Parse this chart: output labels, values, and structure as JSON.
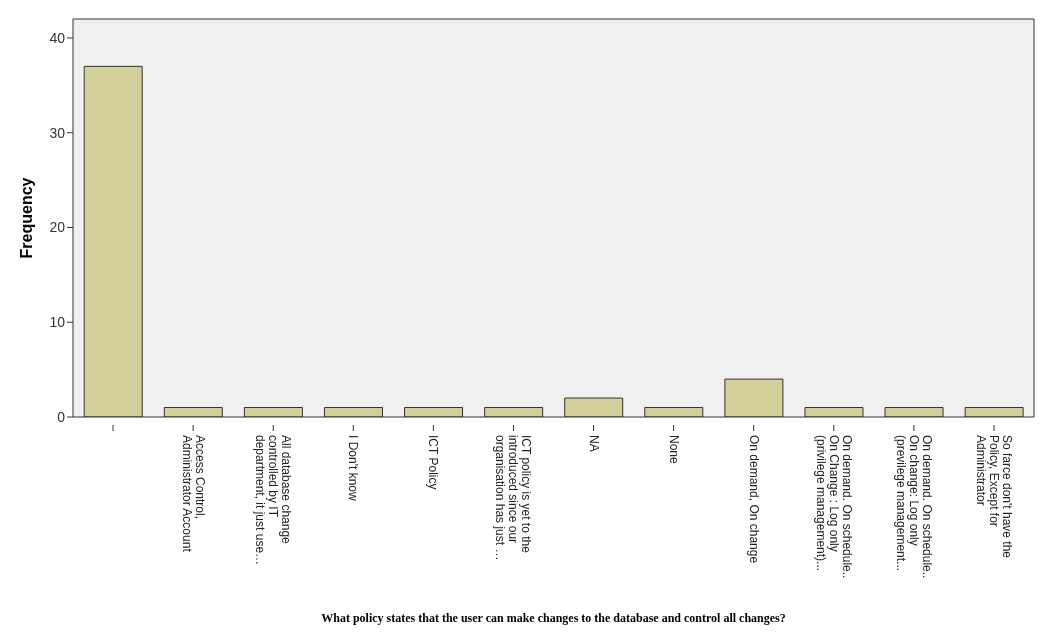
{
  "chart_data": {
    "type": "bar",
    "xlabel": "What policy states that the user can make changes to the database and control all changes?",
    "ylabel": "Frequency",
    "categories": [
      null,
      "Access Control,\nAdministrator Account",
      "All database change\ncontrolled by IT\ndepartment,  it just use…",
      "I Don't know",
      "ICT Policy",
      "ICT policy is yet to the\nintroduced since our\norganisation has just …",
      "NA",
      "None",
      "On demand, On change",
      "On demand. On schedule..\nOn Change : Log only\n(privilege management)...",
      "On demand. On schedule..\nOn change: Log only\n(previlege management...",
      "So farce don't have the\nPolicy, Except for\nAdministrator"
    ],
    "values": [
      37,
      1,
      1,
      1,
      1,
      1,
      2,
      1,
      4,
      1,
      1,
      1
    ],
    "color": "#d3cf98",
    "ylim": [
      0,
      42
    ],
    "yticks": [
      0,
      10,
      20,
      30,
      40
    ],
    "grid": false
  }
}
